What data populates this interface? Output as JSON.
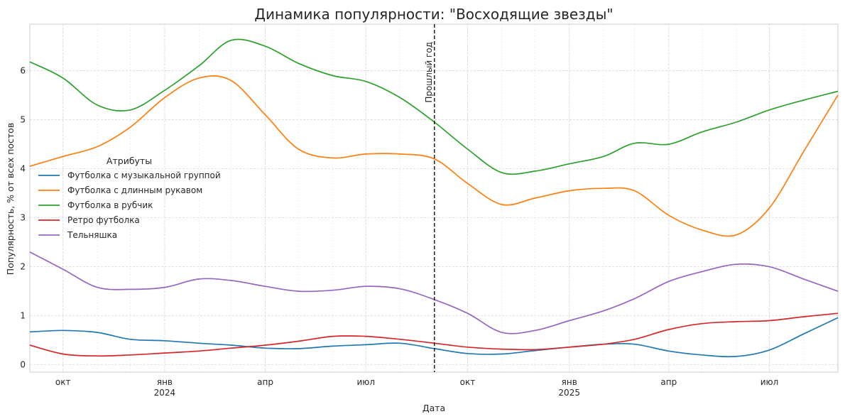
{
  "chart_data": {
    "type": "line",
    "title": "Динамика популярности: \"Восходящие звезды\"",
    "xlabel": "Дата",
    "ylabel": "Популярность, % от всех постов",
    "x_range": [
      "2023-09-01",
      "2025-09-01"
    ],
    "ylim": [
      -0.15,
      6.95
    ],
    "y_ticks": [
      0,
      1,
      2,
      3,
      4,
      5,
      6
    ],
    "x_ticks": [
      {
        "date": "2023-10-01",
        "label": "окт",
        "year": ""
      },
      {
        "date": "2024-01-01",
        "label": "янв",
        "year": "2024"
      },
      {
        "date": "2024-04-01",
        "label": "апр",
        "year": ""
      },
      {
        "date": "2024-07-01",
        "label": "июл",
        "year": ""
      },
      {
        "date": "2024-10-01",
        "label": "окт",
        "year": ""
      },
      {
        "date": "2025-01-01",
        "label": "янв",
        "year": "2025"
      },
      {
        "date": "2025-04-01",
        "label": "апр",
        "year": ""
      },
      {
        "date": "2025-07-01",
        "label": "июл",
        "year": ""
      }
    ],
    "grid": true,
    "legend": {
      "title": "Атрибуты",
      "placement": "center-left"
    },
    "annotation": {
      "date": "2024-09-01",
      "text": "Прошлый год",
      "style": "dashed-vertical-line"
    },
    "x": [
      "2023-09-01",
      "2023-10-01",
      "2023-11-01",
      "2023-12-01",
      "2024-01-01",
      "2024-02-01",
      "2024-03-01",
      "2024-04-01",
      "2024-05-01",
      "2024-06-01",
      "2024-07-01",
      "2024-08-01",
      "2024-09-01",
      "2024-10-01",
      "2024-11-01",
      "2024-12-01",
      "2025-01-01",
      "2025-02-01",
      "2025-03-01",
      "2025-04-01",
      "2025-05-01",
      "2025-06-01",
      "2025-07-01",
      "2025-08-01",
      "2025-09-01"
    ],
    "series": [
      {
        "name": "Футболка с музыкальной группой",
        "color": "#1f77b4",
        "values": [
          0.67,
          0.7,
          0.66,
          0.52,
          0.49,
          0.44,
          0.4,
          0.34,
          0.33,
          0.38,
          0.41,
          0.44,
          0.33,
          0.23,
          0.22,
          0.29,
          0.36,
          0.42,
          0.42,
          0.28,
          0.2,
          0.17,
          0.3,
          0.63,
          0.96
        ]
      },
      {
        "name": "Футболка с длинным рукавом",
        "color": "#ff7f0e",
        "values": [
          4.05,
          4.25,
          4.45,
          4.85,
          5.45,
          5.85,
          5.8,
          5.1,
          4.4,
          4.22,
          4.3,
          4.3,
          4.2,
          3.7,
          3.27,
          3.4,
          3.55,
          3.6,
          3.55,
          3.05,
          2.75,
          2.65,
          3.2,
          4.35,
          5.5
        ]
      },
      {
        "name": "Футболка в рубчик",
        "color": "#2ca02c",
        "values": [
          6.18,
          5.85,
          5.3,
          5.2,
          5.6,
          6.1,
          6.62,
          6.5,
          6.15,
          5.9,
          5.78,
          5.45,
          4.95,
          4.4,
          3.92,
          3.95,
          4.1,
          4.25,
          4.52,
          4.5,
          4.75,
          4.95,
          5.2,
          5.4,
          5.58
        ]
      },
      {
        "name": "Ретро футболка",
        "color": "#d62728",
        "values": [
          0.4,
          0.22,
          0.18,
          0.2,
          0.24,
          0.28,
          0.34,
          0.4,
          0.48,
          0.58,
          0.58,
          0.52,
          0.44,
          0.36,
          0.32,
          0.31,
          0.36,
          0.42,
          0.52,
          0.72,
          0.84,
          0.88,
          0.9,
          0.98,
          1.05
        ]
      },
      {
        "name": "Тельняшка",
        "color": "#9467bd",
        "values": [
          2.3,
          1.95,
          1.58,
          1.54,
          1.58,
          1.75,
          1.72,
          1.6,
          1.5,
          1.52,
          1.6,
          1.55,
          1.33,
          1.05,
          0.66,
          0.7,
          0.9,
          1.1,
          1.35,
          1.7,
          1.9,
          2.05,
          2.0,
          1.75,
          1.5
        ]
      }
    ]
  }
}
